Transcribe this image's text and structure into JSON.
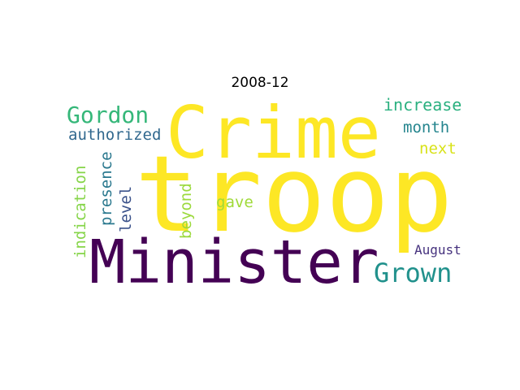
{
  "title": "2008-12",
  "words": [
    {
      "text": "troop",
      "color": "#fde725",
      "orientation": "horizontal"
    },
    {
      "text": "Crime",
      "color": "#fde725",
      "orientation": "horizontal"
    },
    {
      "text": "Minister",
      "color": "#440154",
      "orientation": "horizontal"
    },
    {
      "text": "Gordon",
      "color": "#35b779",
      "orientation": "horizontal"
    },
    {
      "text": "Grown",
      "color": "#21918c",
      "orientation": "horizontal"
    },
    {
      "text": "increase",
      "color": "#2ab07f",
      "orientation": "horizontal"
    },
    {
      "text": "month",
      "color": "#25858e",
      "orientation": "horizontal"
    },
    {
      "text": "next",
      "color": "#d8e219",
      "orientation": "horizontal"
    },
    {
      "text": "authorized",
      "color": "#31688e",
      "orientation": "horizontal"
    },
    {
      "text": "gave",
      "color": "#a0da39",
      "orientation": "horizontal"
    },
    {
      "text": "August",
      "color": "#46327e",
      "orientation": "horizontal"
    },
    {
      "text": "indication",
      "color": "#86d549",
      "orientation": "vertical"
    },
    {
      "text": "presence",
      "color": "#2a788e",
      "orientation": "vertical"
    },
    {
      "text": "level",
      "color": "#3b528b",
      "orientation": "vertical"
    },
    {
      "text": "beyond",
      "color": "#9bd93c",
      "orientation": "vertical"
    }
  ]
}
